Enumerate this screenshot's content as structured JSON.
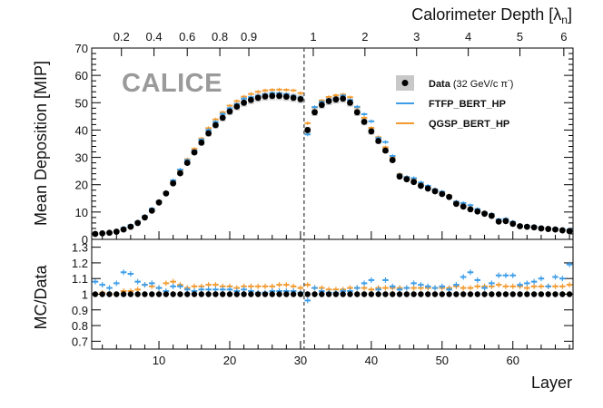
{
  "chart_data": {
    "type": "scatter",
    "logo": "CALICE",
    "top_axis": {
      "label": "Calorimeter Depth [λ",
      "label_sub": "n",
      "label_close": "]",
      "ticks": [
        {
          "layer": 4.7,
          "label": "0.2"
        },
        {
          "layer": 9.3,
          "label": "0.4"
        },
        {
          "layer": 14.0,
          "label": "0.6"
        },
        {
          "layer": 18.6,
          "label": "0.8"
        },
        {
          "layer": 22.7,
          "label": "0.9"
        },
        {
          "layer": 31.8,
          "label": "1"
        },
        {
          "layer": 39.1,
          "label": "2"
        },
        {
          "layer": 46.4,
          "label": "3"
        },
        {
          "layer": 53.7,
          "label": "4"
        },
        {
          "layer": 61.0,
          "label": "5"
        },
        {
          "layer": 67.2,
          "label": "6"
        }
      ]
    },
    "xlabel": "Layer",
    "xlim": [
      0.5,
      68.5
    ],
    "x_ticks": [
      "10",
      "20",
      "30",
      "40",
      "50",
      "60"
    ],
    "boundary_layer": 30.5,
    "legend": {
      "data": {
        "label": "Data",
        "note": "(32 GeV/c π",
        "note_sup": "-",
        "note_close": ")"
      },
      "ftfp": {
        "label": "FTFP_BERT_HP",
        "color": "#3d9de8"
      },
      "qgsp": {
        "label": "QGSP_BERT_HP",
        "color": "#f39a2e"
      }
    },
    "top_panel": {
      "ylabel": "Mean Deposition [MIP]",
      "ylim": [
        0,
        70
      ],
      "y_ticks": [
        "0",
        "10",
        "20",
        "30",
        "40",
        "50",
        "60",
        "70"
      ]
    },
    "bottom_panel": {
      "ylabel": "MC/Data",
      "ylim": [
        0.65,
        1.35
      ],
      "y_ticks": [
        "0.7",
        "0.8",
        "0.9",
        "1",
        "1.1",
        "1.2",
        "1.3"
      ]
    },
    "layers": [
      1,
      2,
      3,
      4,
      5,
      6,
      7,
      8,
      9,
      10,
      11,
      12,
      13,
      14,
      15,
      16,
      17,
      18,
      19,
      20,
      21,
      22,
      23,
      24,
      25,
      26,
      27,
      28,
      29,
      30,
      31,
      32,
      33,
      34,
      35,
      36,
      37,
      38,
      39,
      40,
      41,
      42,
      43,
      44,
      45,
      46,
      47,
      48,
      49,
      50,
      51,
      52,
      53,
      54,
      55,
      56,
      57,
      58,
      59,
      60,
      61,
      62,
      63,
      64,
      65,
      66,
      67,
      68
    ],
    "series": [
      {
        "name": "Data",
        "values": [
          2.0,
          2.2,
          2.4,
          2.8,
          3.6,
          4.6,
          6.0,
          8.0,
          10.5,
          13.5,
          16.8,
          20.5,
          24.2,
          28.0,
          31.8,
          35.4,
          38.8,
          41.8,
          44.5,
          46.8,
          48.6,
          50.0,
          51.0,
          51.8,
          52.3,
          52.5,
          52.5,
          52.2,
          51.8,
          51.3,
          40.0,
          46.5,
          49.2,
          50.6,
          51.2,
          51.5,
          50.0,
          46.5,
          43.0,
          39.5,
          36.0,
          32.5,
          29.0,
          23.0,
          22.0,
          21.0,
          19.6,
          18.6,
          17.6,
          16.6,
          15.5,
          13.0,
          12.0,
          11.0,
          10.2,
          9.4,
          8.6,
          6.5,
          6.7,
          5.7,
          4.8,
          4.6,
          4.4,
          4.0,
          3.8,
          3.6,
          3.3,
          3.0
        ],
        "ratio": [
          1,
          1,
          1,
          1,
          1,
          1,
          1,
          1,
          1,
          1,
          1,
          1,
          1,
          1,
          1,
          1,
          1,
          1,
          1,
          1,
          1,
          1,
          1,
          1,
          1,
          1,
          1,
          1,
          1,
          1,
          1,
          1,
          1,
          1,
          1,
          1,
          1,
          1,
          1,
          1,
          1,
          1,
          1,
          1,
          1,
          1,
          1,
          1,
          1,
          1,
          1,
          1,
          1,
          1,
          1,
          1,
          1,
          1,
          1,
          1,
          1,
          1,
          1,
          1,
          1,
          1,
          1,
          1
        ]
      },
      {
        "name": "FTFP_BERT_HP",
        "values": [
          2.2,
          2.3,
          2.5,
          3.0,
          4.2,
          5.2,
          6.5,
          8.5,
          11.2,
          14.0,
          17.2,
          21.6,
          25.5,
          29.0,
          32.5,
          36.5,
          40.0,
          43.0,
          45.9,
          48.0,
          49.5,
          51.5,
          52.0,
          52.5,
          53.0,
          53.5,
          53.4,
          53.1,
          52.5,
          51.9,
          38.4,
          48.4,
          50.3,
          51.2,
          51.5,
          52.6,
          51.0,
          48.5,
          45.8,
          43.2,
          37.1,
          35.6,
          30.5,
          23.7,
          22.8,
          22.4,
          20.8,
          19.6,
          18.3,
          17.4,
          15.9,
          13.8,
          13.3,
          12.5,
          11.1,
          9.8,
          9.2,
          7.3,
          7.5,
          6.4,
          5.1,
          4.9,
          4.8,
          4.4,
          4.0,
          4.0,
          3.6,
          3.6
        ],
        "ratio": [
          1.08,
          1.06,
          1.04,
          1.07,
          1.14,
          1.13,
          1.08,
          1.06,
          1.07,
          1.04,
          1.02,
          1.05,
          1.05,
          1.03,
          1.02,
          1.03,
          1.03,
          1.03,
          1.03,
          1.03,
          1.02,
          1.03,
          1.02,
          1.01,
          1.01,
          1.02,
          1.02,
          1.02,
          1.02,
          1.01,
          0.96,
          1.04,
          1.02,
          1.01,
          1.01,
          1.02,
          1.02,
          1.04,
          1.07,
          1.09,
          1.03,
          1.09,
          1.05,
          1.03,
          1.04,
          1.07,
          1.06,
          1.05,
          1.04,
          1.05,
          1.03,
          1.06,
          1.11,
          1.14,
          1.09,
          1.04,
          1.07,
          1.12,
          1.12,
          1.12,
          1.06,
          1.07,
          1.08,
          1.1,
          1.05,
          1.11,
          1.1,
          1.19
        ]
      },
      {
        "name": "QGSP_BERT_HP",
        "values": [
          2.0,
          2.2,
          2.4,
          2.8,
          3.7,
          4.7,
          6.3,
          8.3,
          10.9,
          14.0,
          17.3,
          21.3,
          25.1,
          29.3,
          33.1,
          36.9,
          40.7,
          43.9,
          46.5,
          48.9,
          50.6,
          52.2,
          53.2,
          54.0,
          54.5,
          54.7,
          54.8,
          54.7,
          54.5,
          53.5,
          42.5,
          48.3,
          50.8,
          52.1,
          52.7,
          53.0,
          52.0,
          48.3,
          44.5,
          40.8,
          37.4,
          33.7,
          30.0,
          23.9,
          22.8,
          21.8,
          20.3,
          19.2,
          18.1,
          17.1,
          16.1,
          13.5,
          12.4,
          11.4,
          10.7,
          9.8,
          9.0,
          6.9,
          7.0,
          6.0,
          5.0,
          4.8,
          4.6,
          4.2,
          4.0,
          3.8,
          3.5,
          3.2
        ],
        "ratio": [
          1.0,
          1.01,
          1.0,
          1.0,
          1.02,
          1.02,
          1.03,
          1.06,
          1.05,
          1.04,
          1.07,
          1.08,
          1.06,
          1.04,
          1.05,
          1.05,
          1.06,
          1.06,
          1.05,
          1.05,
          1.04,
          1.05,
          1.05,
          1.05,
          1.05,
          1.05,
          1.06,
          1.06,
          1.05,
          1.04,
          1.06,
          1.04,
          1.04,
          1.03,
          1.03,
          1.03,
          1.04,
          1.04,
          1.04,
          1.03,
          1.04,
          1.04,
          1.04,
          1.04,
          1.04,
          1.04,
          1.04,
          1.04,
          1.04,
          1.04,
          1.04,
          1.05,
          1.04,
          1.04,
          1.05,
          1.05,
          1.05,
          1.06,
          1.05,
          1.05,
          1.05,
          1.04,
          1.05,
          1.05,
          1.05,
          1.05,
          1.05,
          1.06
        ]
      }
    ]
  }
}
